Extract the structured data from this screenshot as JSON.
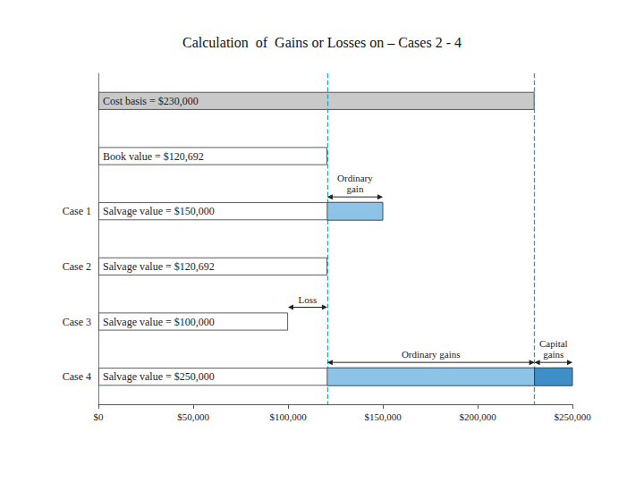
{
  "chart_data": {
    "type": "bar",
    "orientation": "horizontal",
    "title": "Calculation  of  Gains or Losses on – Cases 2 - 4",
    "categories": [
      null,
      null,
      "Case 1",
      "Case 2",
      "Case 3",
      "Case 4"
    ],
    "values": [
      230000,
      120692,
      150000,
      120692,
      100000,
      250000
    ],
    "value_labels": [
      "Cost basis = $230,000",
      "Book value = $120,692",
      "Salvage value = $150,000",
      "Salvage value = $120,692",
      "Salvage value = $100,000",
      "Salvage value = $250,000"
    ],
    "colors": [
      "#c9c9c9",
      "#ffffff",
      "#ffffff",
      "#ffffff",
      "#ffffff",
      "#ffffff"
    ],
    "data_labels": true,
    "dashed_lines": [
      120692,
      230000
    ],
    "segments": [
      {
        "category": "Case 1",
        "from": 120692,
        "to": 150000,
        "label": "Ordinary\ngain",
        "color": "#8cc3e6"
      },
      {
        "category": "Case 3",
        "from": 100000,
        "to": 120692,
        "label": "Loss",
        "color": null
      },
      {
        "category": "Case 4",
        "from": 120692,
        "to": 230000,
        "label": "Ordinary gains",
        "color": "#8cc3e6"
      },
      {
        "category": "Case 4",
        "from": 230000,
        "to": 250000,
        "label": "Capital\ngains",
        "color": "#3d8fc6"
      }
    ],
    "xlim": [
      0,
      250000
    ],
    "xticks": [
      {
        "value": 0,
        "label": "$0"
      },
      {
        "value": 50000,
        "label": "$50,000"
      },
      {
        "value": 100000,
        "label": "$100,000"
      },
      {
        "value": 150000,
        "label": "$150,000"
      },
      {
        "value": 200000,
        "label": "$200,000"
      },
      {
        "value": 250000,
        "label": "$250,000"
      }
    ],
    "grid": false
  }
}
